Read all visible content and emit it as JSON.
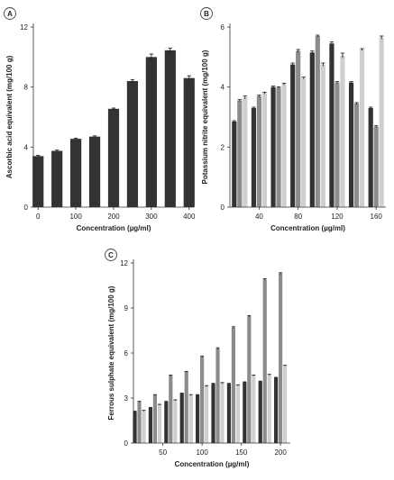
{
  "chart_data": [
    {
      "panel": "A",
      "type": "bar",
      "xlabel": "Concentration (µg/ml)",
      "ylabel": "Ascorbic acid equivalent (mg/100 g)",
      "ylim": [
        0,
        12
      ],
      "yticks": [
        0,
        4,
        8,
        12
      ],
      "xlim": [
        -12.5,
        412.5
      ],
      "xticks": [
        0,
        100,
        200,
        300,
        400
      ],
      "grid": false,
      "series": [
        {
          "x": [
            0,
            50,
            100,
            150,
            200,
            250,
            300,
            350,
            400
          ],
          "values": [
            3.4,
            3.75,
            4.55,
            4.7,
            6.55,
            8.4,
            10.0,
            10.45,
            8.6
          ],
          "errors": [
            0.05,
            0.05,
            0.05,
            0.05,
            0.05,
            0.1,
            0.2,
            0.15,
            0.15
          ],
          "color": "#333333"
        }
      ]
    },
    {
      "panel": "B",
      "type": "bar",
      "xlabel": "Concentration (µg/ml)",
      "ylabel": "Potassium nitrite equivalent (mg/100 g)",
      "ylim": [
        0,
        6
      ],
      "yticks": [
        0,
        2,
        4,
        6
      ],
      "xlim": [
        10,
        170
      ],
      "xticks": [
        40,
        80,
        120,
        160
      ],
      "grid": false,
      "series": [
        {
          "x": [
            20,
            40,
            60,
            80,
            100,
            120,
            140,
            160
          ],
          "values": [
            2.85,
            3.3,
            4.0,
            4.75,
            5.15,
            5.45,
            4.15,
            3.3
          ],
          "errors": [
            0.03,
            0.03,
            0.03,
            0.05,
            0.05,
            0.05,
            0.03,
            0.03
          ],
          "color": "#333333"
        },
        {
          "x": [
            20,
            40,
            60,
            80,
            100,
            120,
            140,
            160
          ],
          "values": [
            3.55,
            3.7,
            3.98,
            5.2,
            5.7,
            4.15,
            3.45,
            2.68
          ],
          "errors": [
            0.03,
            0.03,
            0.03,
            0.05,
            0.03,
            0.03,
            0.03,
            0.03
          ],
          "color": "#8c8c8c"
        },
        {
          "x": [
            20,
            40,
            60,
            80,
            100,
            120,
            140,
            160
          ],
          "values": [
            3.65,
            3.8,
            4.1,
            4.3,
            4.75,
            5.05,
            5.25,
            5.65
          ],
          "errors": [
            0.05,
            0.03,
            0.03,
            0.03,
            0.05,
            0.08,
            0.03,
            0.05
          ],
          "color": "#cfcfcf"
        }
      ]
    },
    {
      "panel": "C",
      "type": "bar",
      "xlabel": "Concentration (µg/ml)",
      "ylabel": "Ferrous sulphate equivalent (mg/100 g)",
      "ylim": [
        0,
        12
      ],
      "yticks": [
        0,
        3,
        6,
        9,
        12
      ],
      "xlim": [
        12.5,
        212.5
      ],
      "xticks": [
        50,
        100,
        150,
        200
      ],
      "grid": false,
      "series": [
        {
          "x": [
            20,
            40,
            60,
            80,
            100,
            120,
            140,
            160,
            180,
            200
          ],
          "values": [
            2.1,
            2.35,
            2.75,
            3.3,
            3.2,
            3.95,
            3.95,
            4.05,
            4.1,
            4.35
          ],
          "errors": [
            0.03,
            0.03,
            0.03,
            0.03,
            0.03,
            0.03,
            0.03,
            0.03,
            0.03,
            0.03
          ],
          "color": "#333333"
        },
        {
          "x": [
            20,
            40,
            60,
            80,
            100,
            120,
            140,
            160,
            180,
            200
          ],
          "values": [
            2.75,
            3.2,
            4.5,
            4.75,
            5.75,
            6.3,
            7.7,
            8.45,
            10.9,
            11.3
          ],
          "errors": [
            0.03,
            0.03,
            0.03,
            0.03,
            0.05,
            0.05,
            0.05,
            0.05,
            0.05,
            0.05
          ],
          "color": "#8c8c8c"
        },
        {
          "x": [
            20,
            40,
            60,
            80,
            100,
            120,
            140,
            160,
            180,
            200
          ],
          "values": [
            2.15,
            2.55,
            2.85,
            3.2,
            3.8,
            4.0,
            3.85,
            4.5,
            4.55,
            5.15
          ],
          "errors": [
            0.03,
            0.03,
            0.03,
            0.03,
            0.03,
            0.03,
            0.03,
            0.03,
            0.03,
            0.03
          ],
          "color": "#cfcfcf"
        }
      ]
    }
  ]
}
